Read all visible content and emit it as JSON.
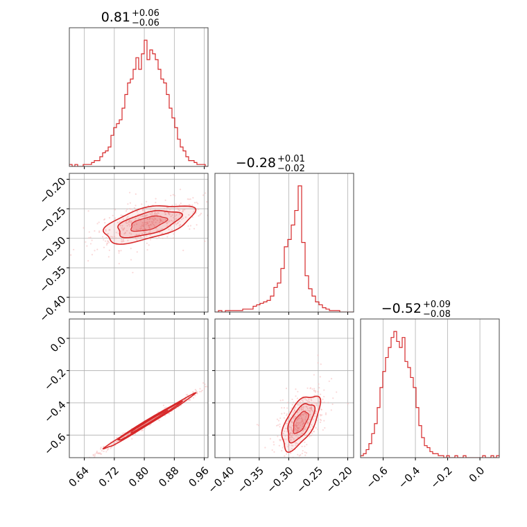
{
  "chart_data": {
    "type": "corner",
    "color": "#d62728",
    "parameters": [
      {
        "median": 0.81,
        "plus": 0.06,
        "minus": 0.06
      },
      {
        "median": -0.28,
        "plus": 0.01,
        "minus": 0.02
      },
      {
        "median": -0.52,
        "plus": 0.09,
        "minus": 0.08
      }
    ],
    "titles": [
      {
        "main": "0.81",
        "sup": "+0.06",
        "sub": "−0.06"
      },
      {
        "main": "−0.28",
        "sup": "+0.01",
        "sub": "−0.02"
      },
      {
        "main": "−0.52",
        "sup": "+0.09",
        "sub": "−0.08"
      }
    ],
    "ranges": [
      [
        0.6,
        0.97
      ],
      [
        -0.425,
        -0.19
      ],
      [
        -0.74,
        0.12
      ]
    ],
    "ticks": [
      {
        "values": [
          0.64,
          0.72,
          0.8,
          0.88,
          0.96
        ],
        "labels": [
          "0.64",
          "0.72",
          "0.80",
          "0.88",
          "0.96"
        ]
      },
      {
        "values": [
          -0.4,
          -0.35,
          -0.3,
          -0.25,
          -0.2
        ],
        "labels": [
          "−0.40",
          "−0.35",
          "−0.30",
          "−0.25",
          "−0.20"
        ]
      },
      {
        "values": [
          -0.6,
          -0.4,
          -0.2,
          0.0
        ],
        "labels": [
          "−0.6",
          "−0.4",
          "−0.2",
          "0.0"
        ]
      }
    ],
    "histograms": [
      {
        "edges_range": [
          0.6,
          0.97
        ],
        "counts": [
          1,
          0,
          1,
          0,
          0,
          1,
          1,
          1,
          2,
          3,
          3,
          5,
          7,
          8,
          10,
          16,
          20,
          22,
          24,
          30,
          37,
          43,
          45,
          50,
          56,
          50,
          58,
          65,
          55,
          60,
          58,
          55,
          50,
          45,
          43,
          37,
          30,
          25,
          20,
          14,
          10,
          8,
          5,
          3,
          3,
          2,
          1,
          1,
          1,
          0
        ]
      },
      {
        "edges_range": [
          -0.425,
          -0.19
        ],
        "counts": [
          0,
          1,
          0,
          1,
          1,
          1,
          1,
          1,
          2,
          2,
          2,
          4,
          5,
          6,
          7,
          8,
          11,
          17,
          20,
          30,
          45,
          50,
          60,
          70,
          87,
          48,
          25,
          16,
          11,
          7,
          5,
          3,
          2,
          1,
          1,
          1,
          0,
          0,
          0,
          0
        ]
      },
      {
        "edges_range": [
          -0.74,
          0.12
        ],
        "counts": [
          1,
          2,
          4,
          7,
          12,
          17,
          25,
          35,
          43,
          50,
          55,
          60,
          63,
          58,
          55,
          60,
          48,
          45,
          40,
          35,
          25,
          16,
          10,
          6,
          5,
          3,
          2,
          2,
          1,
          1,
          0,
          1,
          0,
          0,
          1,
          0,
          0,
          1,
          0,
          0,
          0,
          0,
          0,
          0,
          1,
          0,
          0,
          1,
          0,
          1
        ]
      }
    ],
    "contours": [
      {
        "pair": [
          0,
          1
        ],
        "center": [
          0.81,
          -0.275
        ],
        "sigma": [
          0.06,
          0.016
        ],
        "rho": 0.55
      },
      {
        "pair": [
          0,
          2
        ],
        "center": [
          0.81,
          -0.52
        ],
        "sigma": [
          0.06,
          0.085
        ],
        "rho": 0.995
      },
      {
        "pair": [
          1,
          2
        ],
        "center": [
          -0.28,
          -0.52
        ],
        "sigma": [
          0.016,
          0.085
        ],
        "rho": 0.6
      }
    ],
    "grid": true
  }
}
